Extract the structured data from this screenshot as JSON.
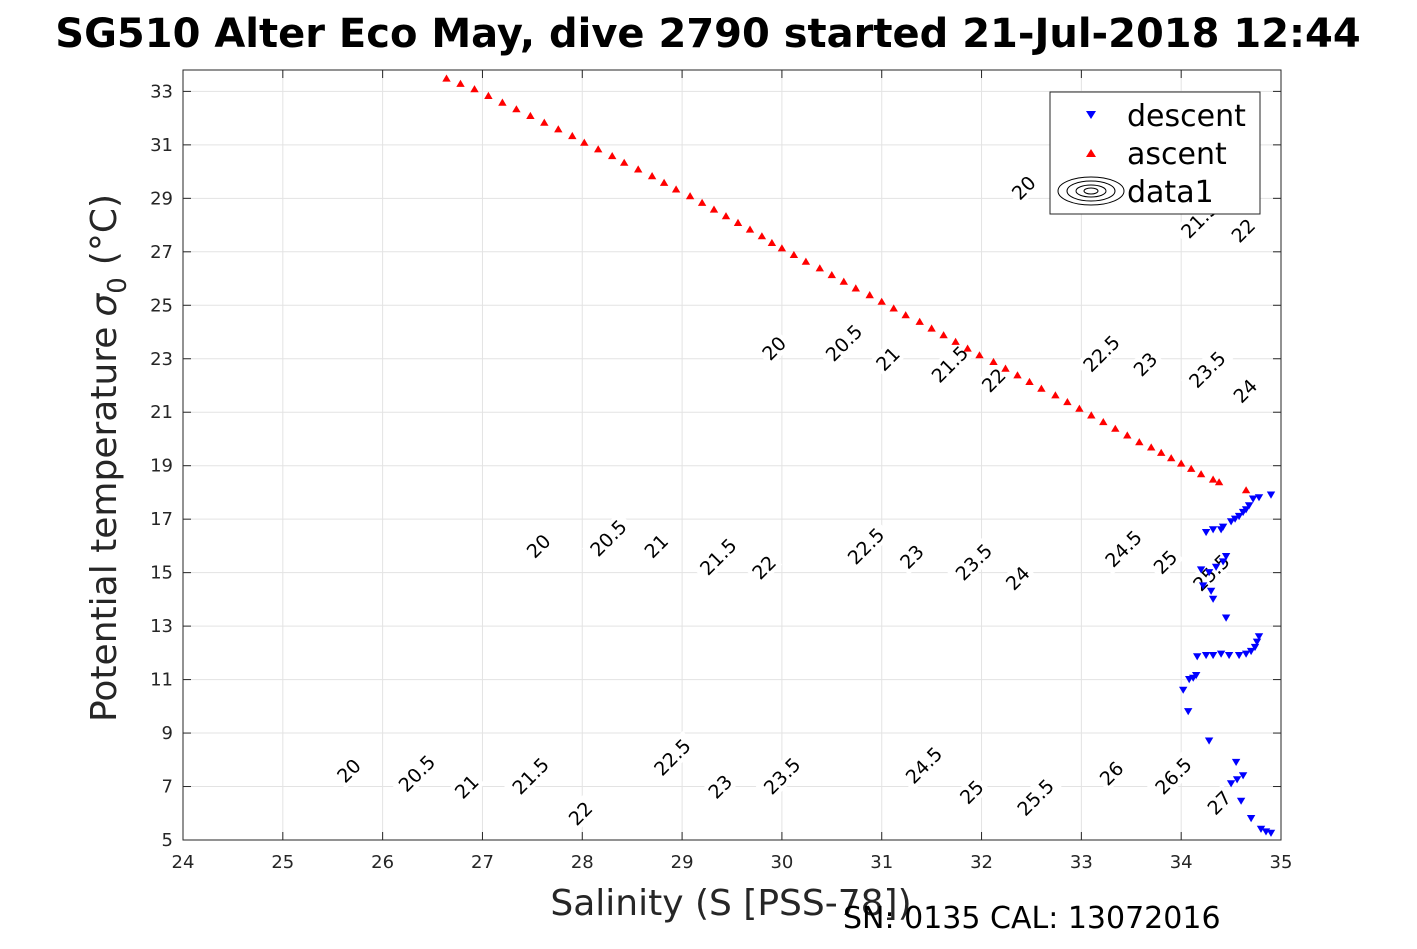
{
  "chart_data": {
    "type": "scatter",
    "title": "SG510 Alter Eco May, dive 2790 started 21-Jul-2018 12:44",
    "xlabel": "Salinity (S [PSS-78])",
    "ylabel": "Potential temperature",
    "ylabel_sigma": "σ",
    "ylabel_sub": "0",
    "ylabel_unit": "(°C)",
    "footer": "SN: 0135  CAL: 13072016",
    "xlim": [
      24,
      35
    ],
    "ylim": [
      5,
      33.8
    ],
    "x_ticks": [
      24,
      25,
      26,
      27,
      28,
      29,
      30,
      31,
      32,
      33,
      34,
      35
    ],
    "y_ticks": [
      5,
      7,
      9,
      11,
      13,
      15,
      17,
      19,
      21,
      23,
      25,
      27,
      29,
      31,
      33
    ],
    "grid": true,
    "legend_position": "top-right",
    "series": [
      {
        "name": "descent",
        "marker": "triangle-down",
        "color": "#0000ff",
        "points": [
          [
            34.9,
            17.9
          ],
          [
            34.78,
            17.8
          ],
          [
            34.72,
            17.75
          ],
          [
            34.68,
            17.5
          ],
          [
            34.65,
            17.35
          ],
          [
            34.62,
            17.25
          ],
          [
            34.58,
            17.1
          ],
          [
            34.54,
            17.0
          ],
          [
            34.5,
            16.9
          ],
          [
            34.42,
            16.7
          ],
          [
            34.4,
            16.6
          ],
          [
            34.32,
            16.6
          ],
          [
            34.25,
            16.5
          ],
          [
            34.45,
            15.6
          ],
          [
            34.42,
            15.4
          ],
          [
            34.35,
            15.2
          ],
          [
            34.28,
            15.0
          ],
          [
            34.2,
            15.1
          ],
          [
            34.3,
            14.3
          ],
          [
            34.22,
            14.5
          ],
          [
            34.32,
            14.0
          ],
          [
            34.45,
            13.3
          ],
          [
            34.78,
            12.6
          ],
          [
            34.76,
            12.4
          ],
          [
            34.74,
            12.2
          ],
          [
            34.7,
            12.05
          ],
          [
            34.65,
            11.95
          ],
          [
            34.58,
            11.9
          ],
          [
            34.48,
            11.9
          ],
          [
            34.4,
            11.95
          ],
          [
            34.32,
            11.9
          ],
          [
            34.25,
            11.9
          ],
          [
            34.16,
            11.85
          ],
          [
            34.15,
            11.15
          ],
          [
            34.12,
            11.05
          ],
          [
            34.08,
            11.0
          ],
          [
            34.02,
            10.6
          ],
          [
            34.07,
            9.8
          ],
          [
            34.28,
            8.7
          ],
          [
            34.55,
            7.9
          ],
          [
            34.62,
            7.4
          ],
          [
            34.56,
            7.25
          ],
          [
            34.5,
            7.1
          ],
          [
            34.6,
            6.45
          ],
          [
            34.7,
            5.8
          ],
          [
            34.8,
            5.4
          ],
          [
            34.85,
            5.3
          ],
          [
            34.9,
            5.25
          ]
        ]
      },
      {
        "name": "ascent",
        "marker": "triangle-up",
        "color": "#ff0000",
        "points": [
          [
            34.65,
            18.1
          ],
          [
            34.38,
            18.4
          ],
          [
            34.32,
            18.5
          ],
          [
            34.2,
            18.7
          ],
          [
            34.1,
            18.9
          ],
          [
            34.0,
            19.1
          ],
          [
            33.9,
            19.3
          ],
          [
            33.8,
            19.5
          ],
          [
            33.7,
            19.7
          ],
          [
            33.58,
            19.9
          ],
          [
            33.46,
            20.15
          ],
          [
            33.34,
            20.4
          ],
          [
            33.22,
            20.65
          ],
          [
            33.1,
            20.9
          ],
          [
            32.98,
            21.15
          ],
          [
            32.86,
            21.4
          ],
          [
            32.74,
            21.65
          ],
          [
            32.6,
            21.9
          ],
          [
            32.48,
            22.15
          ],
          [
            32.36,
            22.4
          ],
          [
            32.24,
            22.65
          ],
          [
            32.12,
            22.9
          ],
          [
            31.98,
            23.15
          ],
          [
            31.86,
            23.4
          ],
          [
            31.74,
            23.65
          ],
          [
            31.62,
            23.9
          ],
          [
            31.5,
            24.15
          ],
          [
            31.38,
            24.4
          ],
          [
            31.24,
            24.65
          ],
          [
            31.12,
            24.9
          ],
          [
            31.0,
            25.15
          ],
          [
            30.88,
            25.4
          ],
          [
            30.74,
            25.65
          ],
          [
            30.62,
            25.9
          ],
          [
            30.5,
            26.15
          ],
          [
            30.38,
            26.4
          ],
          [
            30.24,
            26.65
          ],
          [
            30.12,
            26.9
          ],
          [
            30.0,
            27.15
          ],
          [
            29.9,
            27.35
          ],
          [
            29.8,
            27.6
          ],
          [
            29.68,
            27.85
          ],
          [
            29.56,
            28.1
          ],
          [
            29.44,
            28.35
          ],
          [
            29.32,
            28.6
          ],
          [
            29.2,
            28.85
          ],
          [
            29.08,
            29.1
          ],
          [
            28.94,
            29.35
          ],
          [
            28.82,
            29.6
          ],
          [
            28.7,
            29.85
          ],
          [
            28.56,
            30.1
          ],
          [
            28.42,
            30.35
          ],
          [
            28.3,
            30.6
          ],
          [
            28.16,
            30.85
          ],
          [
            28.02,
            31.1
          ],
          [
            27.9,
            31.35
          ],
          [
            27.76,
            31.6
          ],
          [
            27.62,
            31.85
          ],
          [
            27.48,
            32.1
          ],
          [
            27.34,
            32.35
          ],
          [
            27.2,
            32.6
          ],
          [
            27.06,
            32.85
          ],
          [
            26.92,
            33.1
          ],
          [
            26.78,
            33.3
          ],
          [
            26.64,
            33.5
          ]
        ]
      },
      {
        "name": "data1",
        "marker": "contour",
        "color": "#000000",
        "levels": [
          20,
          20.5,
          21,
          21.5,
          22,
          22.5,
          23,
          23.5,
          24,
          24.5,
          25,
          25.5,
          26,
          26.5,
          27
        ]
      }
    ],
    "contour_labels": [
      {
        "text": "20",
        "x": 27.56,
        "y": 16.0
      },
      {
        "text": "20.5",
        "x": 28.26,
        "y": 16.3
      },
      {
        "text": "21",
        "x": 28.74,
        "y": 16.0
      },
      {
        "text": "21.5",
        "x": 29.36,
        "y": 15.6
      },
      {
        "text": "22",
        "x": 29.82,
        "y": 15.2
      },
      {
        "text": "22.5",
        "x": 30.84,
        "y": 16.0
      },
      {
        "text": "23",
        "x": 31.3,
        "y": 15.6
      },
      {
        "text": "23.5",
        "x": 31.92,
        "y": 15.4
      },
      {
        "text": "24",
        "x": 32.36,
        "y": 14.8
      },
      {
        "text": "24.5",
        "x": 33.42,
        "y": 15.9
      },
      {
        "text": "25",
        "x": 33.84,
        "y": 15.4
      },
      {
        "text": "25.5",
        "x": 34.3,
        "y": 15.0
      },
      {
        "text": "20",
        "x": 25.66,
        "y": 7.6
      },
      {
        "text": "20.5",
        "x": 26.34,
        "y": 7.5
      },
      {
        "text": "21",
        "x": 26.84,
        "y": 7.0
      },
      {
        "text": "21.5",
        "x": 27.48,
        "y": 7.4
      },
      {
        "text": "22",
        "x": 27.98,
        "y": 6.0
      },
      {
        "text": "22.5",
        "x": 28.9,
        "y": 8.1
      },
      {
        "text": "23",
        "x": 29.38,
        "y": 7.0
      },
      {
        "text": "23.5",
        "x": 30.0,
        "y": 7.4
      },
      {
        "text": "24.5",
        "x": 31.42,
        "y": 7.8
      },
      {
        "text": "25",
        "x": 31.9,
        "y": 6.8
      },
      {
        "text": "25.5",
        "x": 32.54,
        "y": 6.6
      },
      {
        "text": "26",
        "x": 33.3,
        "y": 7.5
      },
      {
        "text": "26.5",
        "x": 33.92,
        "y": 7.4
      },
      {
        "text": "27",
        "x": 34.38,
        "y": 6.4
      },
      {
        "text": "20",
        "x": 29.92,
        "y": 23.4
      },
      {
        "text": "20.5",
        "x": 30.62,
        "y": 23.6
      },
      {
        "text": "21",
        "x": 31.06,
        "y": 23.0
      },
      {
        "text": "21.5",
        "x": 31.68,
        "y": 22.8
      },
      {
        "text": "22",
        "x": 32.12,
        "y": 22.2
      },
      {
        "text": "22.5",
        "x": 33.2,
        "y": 23.2
      },
      {
        "text": "23",
        "x": 33.64,
        "y": 22.8
      },
      {
        "text": "23.5",
        "x": 34.26,
        "y": 22.6
      },
      {
        "text": "24",
        "x": 34.64,
        "y": 21.8
      },
      {
        "text": "20",
        "x": 32.42,
        "y": 29.4
      },
      {
        "text": "21.5",
        "x": 34.18,
        "y": 28.2
      },
      {
        "text": "22",
        "x": 34.62,
        "y": 27.8
      }
    ]
  }
}
